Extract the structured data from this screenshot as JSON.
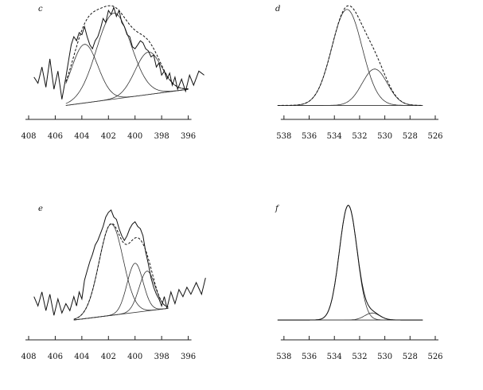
{
  "group_labels": {
    "control": "",
    "modified": ""
  },
  "watermark": "",
  "chart_data": [
    {
      "type": "line",
      "panel": "c",
      "xlabel": "",
      "xlim": [
        408,
        394
      ],
      "x_ticks": [
        408,
        406,
        404,
        402,
        400,
        398,
        396
      ],
      "x_ticks_reversed": true,
      "grid": false,
      "legend": "none",
      "raw_curve": [
        [
          407.6,
          0.3
        ],
        [
          407.3,
          0.24
        ],
        [
          407.0,
          0.4
        ],
        [
          406.7,
          0.2
        ],
        [
          406.4,
          0.48
        ],
        [
          406.1,
          0.18
        ],
        [
          405.8,
          0.36
        ],
        [
          405.5,
          0.08
        ],
        [
          405.2,
          0.3
        ],
        [
          405.0,
          0.46
        ],
        [
          404.8,
          0.62
        ],
        [
          404.6,
          0.7
        ],
        [
          404.4,
          0.66
        ],
        [
          404.2,
          0.74
        ],
        [
          404.0,
          0.72
        ],
        [
          403.8,
          0.8
        ],
        [
          403.6,
          0.7
        ],
        [
          403.4,
          0.62
        ],
        [
          403.2,
          0.58
        ],
        [
          403.0,
          0.66
        ],
        [
          402.8,
          0.7
        ],
        [
          402.6,
          0.78
        ],
        [
          402.4,
          0.88
        ],
        [
          402.2,
          0.84
        ],
        [
          402.0,
          0.96
        ],
        [
          401.8,
          0.92
        ],
        [
          401.6,
          0.99
        ],
        [
          401.4,
          0.9
        ],
        [
          401.2,
          0.96
        ],
        [
          401.0,
          0.84
        ],
        [
          400.8,
          0.8
        ],
        [
          400.6,
          0.72
        ],
        [
          400.4,
          0.7
        ],
        [
          400.2,
          0.6
        ],
        [
          400.0,
          0.58
        ],
        [
          399.8,
          0.62
        ],
        [
          399.6,
          0.66
        ],
        [
          399.4,
          0.64
        ],
        [
          399.2,
          0.58
        ],
        [
          399.0,
          0.56
        ],
        [
          398.8,
          0.5
        ],
        [
          398.6,
          0.52
        ],
        [
          398.4,
          0.4
        ],
        [
          398.2,
          0.44
        ],
        [
          398.0,
          0.32
        ],
        [
          397.8,
          0.36
        ],
        [
          397.6,
          0.28
        ],
        [
          397.4,
          0.34
        ],
        [
          397.2,
          0.22
        ],
        [
          397.0,
          0.3
        ],
        [
          396.8,
          0.18
        ],
        [
          396.5,
          0.28
        ],
        [
          396.2,
          0.16
        ],
        [
          395.9,
          0.32
        ],
        [
          395.6,
          0.22
        ],
        [
          395.2,
          0.36
        ],
        [
          394.8,
          0.32
        ]
      ],
      "baseline": [
        [
          405.2,
          0.02
        ],
        [
          396.0,
          0.18
        ]
      ],
      "fit_peaks": [
        {
          "center": 403.8,
          "height": 0.58,
          "width": 1.0
        },
        {
          "center": 401.6,
          "height": 0.85,
          "width": 1.3
        },
        {
          "center": 399.0,
          "height": 0.42,
          "width": 1.0
        }
      ],
      "envelope_dashed": true
    },
    {
      "type": "line",
      "panel": "d",
      "xlabel": "",
      "xlim": [
        539,
        526
      ],
      "x_ticks": [
        538,
        536,
        534,
        532,
        530,
        528,
        526
      ],
      "x_ticks_reversed": true,
      "grid": false,
      "legend": "none",
      "baseline": [
        [
          538.5,
          0.02
        ],
        [
          527.0,
          0.02
        ]
      ],
      "fit_peaks": [
        {
          "center": 533.0,
          "height": 0.95,
          "width": 1.2
        },
        {
          "center": 530.8,
          "height": 0.36,
          "width": 1.0
        }
      ],
      "envelope_dashed": true
    },
    {
      "type": "line",
      "panel": "e",
      "xlabel": "",
      "xlim": [
        408,
        394
      ],
      "x_ticks": [
        408,
        406,
        404,
        402,
        400,
        398,
        396
      ],
      "x_ticks_reversed": true,
      "grid": false,
      "legend": "none",
      "raw_curve": [
        [
          407.6,
          0.22
        ],
        [
          407.3,
          0.14
        ],
        [
          407.0,
          0.26
        ],
        [
          406.7,
          0.1
        ],
        [
          406.4,
          0.24
        ],
        [
          406.1,
          0.06
        ],
        [
          405.8,
          0.2
        ],
        [
          405.5,
          0.08
        ],
        [
          405.2,
          0.16
        ],
        [
          404.9,
          0.1
        ],
        [
          404.6,
          0.22
        ],
        [
          404.4,
          0.14
        ],
        [
          404.2,
          0.26
        ],
        [
          404.0,
          0.2
        ],
        [
          403.8,
          0.36
        ],
        [
          403.6,
          0.44
        ],
        [
          403.4,
          0.52
        ],
        [
          403.2,
          0.58
        ],
        [
          403.0,
          0.66
        ],
        [
          402.8,
          0.7
        ],
        [
          402.6,
          0.76
        ],
        [
          402.4,
          0.82
        ],
        [
          402.2,
          0.9
        ],
        [
          402.0,
          0.94
        ],
        [
          401.8,
          0.96
        ],
        [
          401.6,
          0.9
        ],
        [
          401.4,
          0.88
        ],
        [
          401.2,
          0.8
        ],
        [
          401.0,
          0.74
        ],
        [
          400.8,
          0.7
        ],
        [
          400.6,
          0.74
        ],
        [
          400.4,
          0.8
        ],
        [
          400.2,
          0.84
        ],
        [
          400.0,
          0.86
        ],
        [
          399.8,
          0.82
        ],
        [
          399.6,
          0.8
        ],
        [
          399.4,
          0.74
        ],
        [
          399.2,
          0.6
        ],
        [
          399.0,
          0.5
        ],
        [
          398.8,
          0.38
        ],
        [
          398.6,
          0.3
        ],
        [
          398.4,
          0.24
        ],
        [
          398.2,
          0.2
        ],
        [
          398.0,
          0.14
        ],
        [
          397.8,
          0.22
        ],
        [
          397.6,
          0.12
        ],
        [
          397.3,
          0.26
        ],
        [
          397.0,
          0.16
        ],
        [
          396.7,
          0.28
        ],
        [
          396.4,
          0.22
        ],
        [
          396.1,
          0.3
        ],
        [
          395.8,
          0.24
        ],
        [
          395.4,
          0.34
        ],
        [
          395.0,
          0.24
        ],
        [
          394.7,
          0.38
        ]
      ],
      "baseline": [
        [
          404.6,
          0.02
        ],
        [
          397.5,
          0.12
        ]
      ],
      "fit_peaks": [
        {
          "center": 401.8,
          "height": 0.78,
          "width": 0.9
        },
        {
          "center": 400.0,
          "height": 0.42,
          "width": 0.6
        },
        {
          "center": 399.1,
          "height": 0.34,
          "width": 0.6
        }
      ],
      "envelope_dashed": true
    },
    {
      "type": "line",
      "panel": "f",
      "xlabel": "",
      "xlim": [
        539,
        526
      ],
      "x_ticks": [
        538,
        536,
        534,
        532,
        530,
        528,
        526
      ],
      "x_ticks_reversed": true,
      "grid": false,
      "legend": "none",
      "baseline": [
        [
          538.5,
          0.02
        ],
        [
          527.0,
          0.02
        ]
      ],
      "fit_peaks": [
        {
          "center": 532.9,
          "height": 0.98,
          "width": 0.7
        },
        {
          "center": 531.0,
          "height": 0.06,
          "width": 0.6
        }
      ],
      "envelope_dashed": false
    }
  ]
}
